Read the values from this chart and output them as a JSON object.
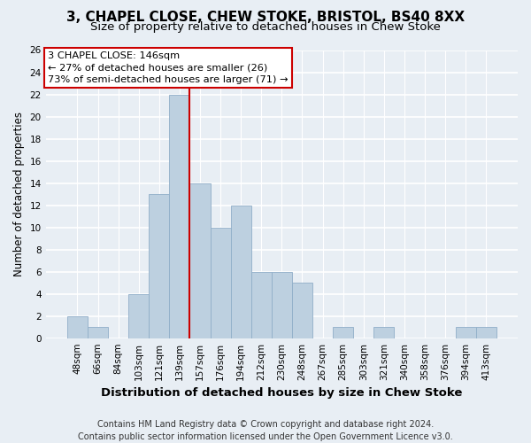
{
  "title1": "3, CHAPEL CLOSE, CHEW STOKE, BRISTOL, BS40 8XX",
  "title2": "Size of property relative to detached houses in Chew Stoke",
  "xlabel": "Distribution of detached houses by size in Chew Stoke",
  "ylabel": "Number of detached properties",
  "bin_labels": [
    "48sqm",
    "66sqm",
    "84sqm",
    "103sqm",
    "121sqm",
    "139sqm",
    "157sqm",
    "176sqm",
    "194sqm",
    "212sqm",
    "230sqm",
    "248sqm",
    "267sqm",
    "285sqm",
    "303sqm",
    "321sqm",
    "340sqm",
    "358sqm",
    "376sqm",
    "394sqm",
    "413sqm"
  ],
  "heights": [
    2,
    1,
    0,
    4,
    13,
    22,
    14,
    10,
    12,
    6,
    6,
    5,
    0,
    1,
    0,
    1,
    0,
    0,
    0,
    1,
    1
  ],
  "bar_color": "#bdd0e0",
  "bar_edgecolor": "#90aec8",
  "vline_color": "#cc0000",
  "annotation_line1": "3 CHAPEL CLOSE: 146sqm",
  "annotation_line2": "← 27% of detached houses are smaller (26)",
  "annotation_line3": "73% of semi-detached houses are larger (71) →",
  "annotation_box_facecolor": "#ffffff",
  "annotation_box_edgecolor": "#cc0000",
  "ylim": [
    0,
    26
  ],
  "yticks": [
    0,
    2,
    4,
    6,
    8,
    10,
    12,
    14,
    16,
    18,
    20,
    22,
    24,
    26
  ],
  "background_color": "#e8eef4",
  "grid_color": "#ffffff",
  "title1_fontsize": 11,
  "title2_fontsize": 9.5,
  "xlabel_fontsize": 9.5,
  "ylabel_fontsize": 8.5,
  "tick_fontsize": 7.5,
  "footer_fontsize": 7,
  "footer_text": "Contains HM Land Registry data © Crown copyright and database right 2024.\nContains public sector information licensed under the Open Government Licence v3.0."
}
